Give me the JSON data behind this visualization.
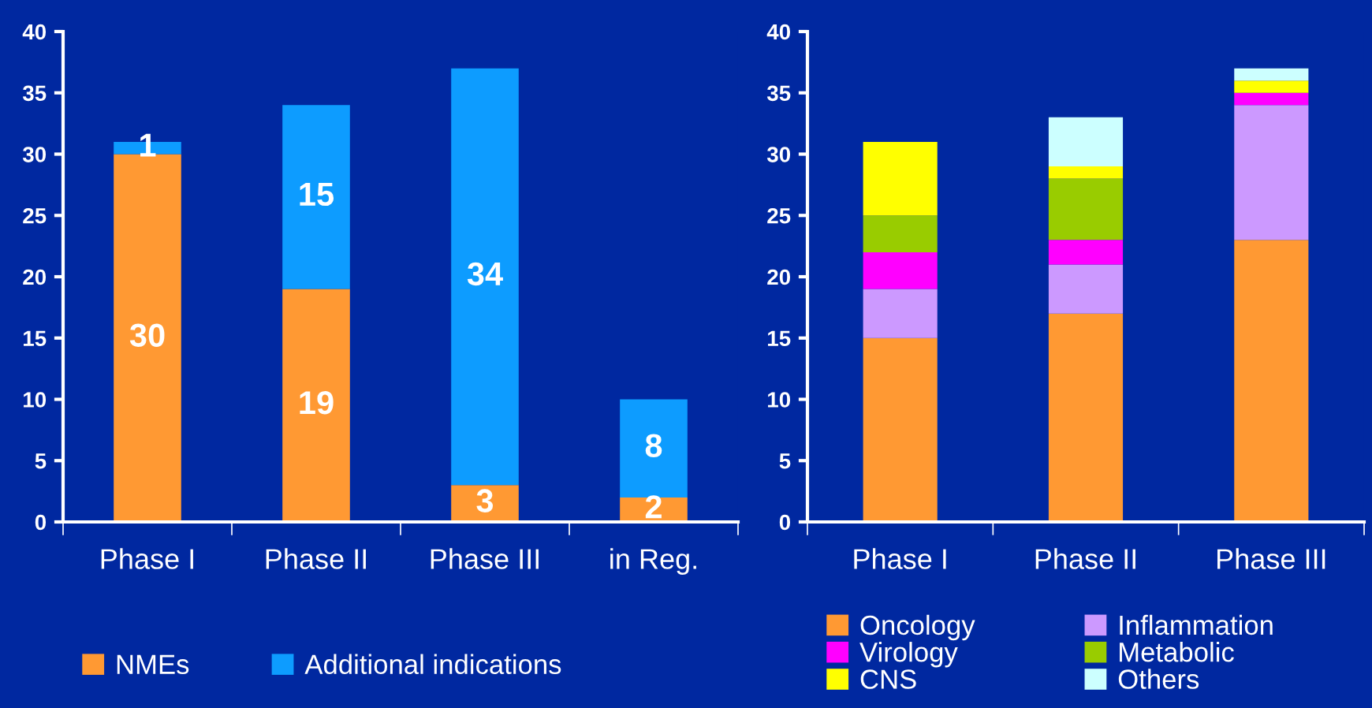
{
  "chart_data": [
    {
      "type": "bar",
      "stacked": true,
      "categories": [
        "Phase I",
        "Phase II",
        "Phase III",
        "in Reg."
      ],
      "ylim": [
        0,
        40
      ],
      "yticks": [
        0,
        5,
        10,
        15,
        20,
        25,
        30,
        35,
        40
      ],
      "grid": false,
      "legend": "bottom",
      "data_labels": true,
      "series": [
        {
          "name": "NMEs",
          "color": "#ff9933",
          "values": [
            30,
            19,
            3,
            2
          ]
        },
        {
          "name": "Additional indications",
          "color": "#0d9cff",
          "values": [
            1,
            15,
            34,
            8
          ]
        }
      ]
    },
    {
      "type": "bar",
      "stacked": true,
      "categories": [
        "Phase I",
        "Phase II",
        "Phase III"
      ],
      "ylim": [
        0,
        40
      ],
      "yticks": [
        0,
        5,
        10,
        15,
        20,
        25,
        30,
        35,
        40
      ],
      "grid": false,
      "legend": "bottom",
      "series": [
        {
          "name": "Oncology",
          "color": "#ff9933",
          "values": [
            15,
            17,
            23
          ]
        },
        {
          "name": "Inflammation",
          "color": "#cc99ff",
          "values": [
            4,
            4,
            11
          ]
        },
        {
          "name": "Virology",
          "color": "#ff00ff",
          "values": [
            3,
            2,
            1
          ]
        },
        {
          "name": "Metabolic",
          "color": "#99cc00",
          "values": [
            3,
            5,
            0
          ]
        },
        {
          "name": "CNS",
          "color": "#ffff00",
          "values": [
            6,
            1,
            1
          ]
        },
        {
          "name": "Others",
          "color": "#ccffff",
          "values": [
            0,
            4,
            1
          ]
        }
      ]
    }
  ]
}
